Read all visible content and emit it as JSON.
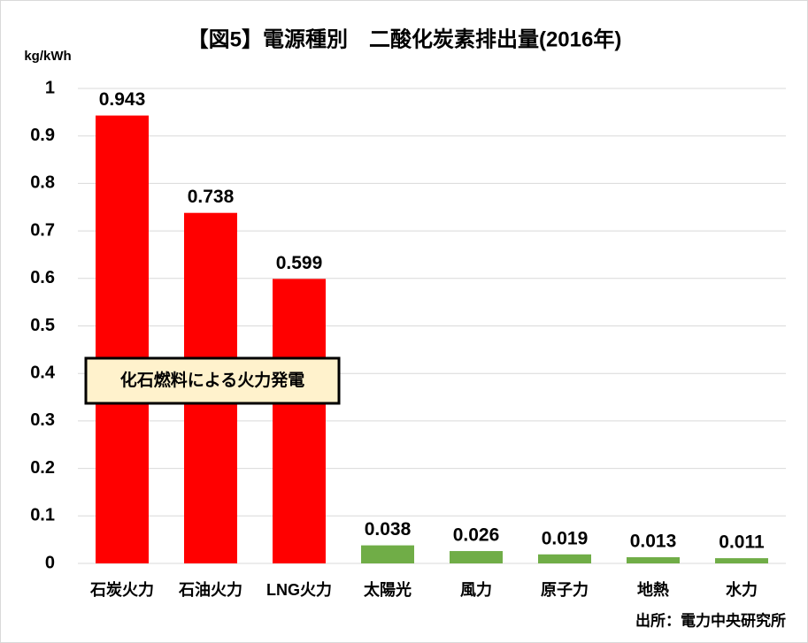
{
  "chart_data": {
    "type": "bar",
    "title": "【図5】電源種別　二酸化炭素排出量(2016年)",
    "y_axis_label": "kg/kWh",
    "categories": [
      "石炭火力",
      "石油火力",
      "LNG火力",
      "太陽光",
      "風力",
      "原子力",
      "地熱",
      "水力"
    ],
    "values": [
      0.943,
      0.738,
      0.599,
      0.038,
      0.026,
      0.019,
      0.013,
      0.011
    ],
    "colors": [
      "#ff0000",
      "#ff0000",
      "#ff0000",
      "#70ad47",
      "#70ad47",
      "#70ad47",
      "#70ad47",
      "#70ad47"
    ],
    "ylim": [
      0,
      1
    ],
    "yticks": [
      0,
      0.1,
      0.2,
      0.3,
      0.4,
      0.5,
      0.6,
      0.7,
      0.8,
      0.9,
      1
    ],
    "grid": true,
    "annotation": "化石燃料による火力発電",
    "source": "出所：電力中央研究所"
  }
}
